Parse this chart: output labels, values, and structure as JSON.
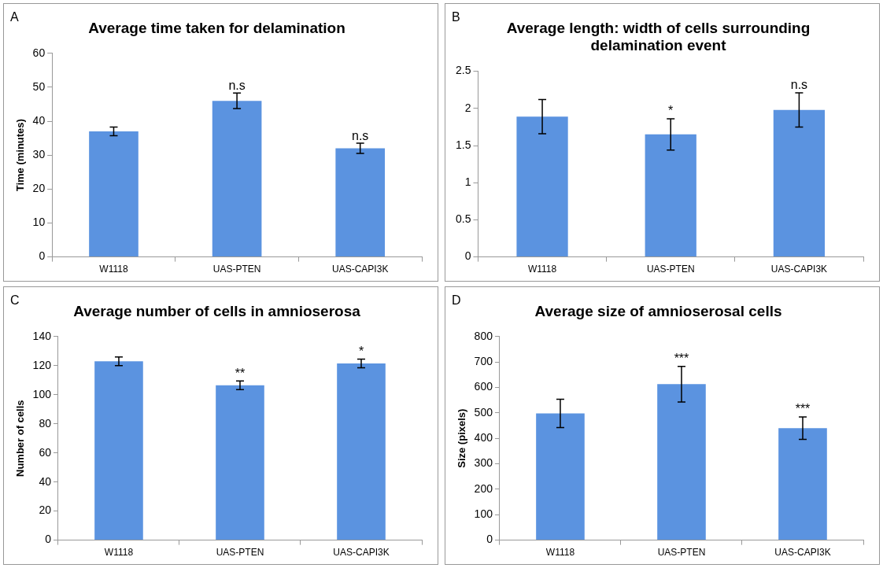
{
  "chart_data": [
    {
      "type": "bar",
      "title": "Average time taken for delamination",
      "ylabel": "Time (minutes)",
      "categories": [
        "W1118",
        "UAS-PTEN",
        "UAS-CAPI3K"
      ],
      "values": [
        37,
        46,
        32
      ],
      "errors": [
        1.3,
        2.3,
        1.5
      ],
      "color": "#5b93e0",
      "ylim": [
        0,
        60
      ],
      "yticks": [
        0,
        10,
        20,
        30,
        40,
        50,
        60
      ],
      "grid": false,
      "legend": false,
      "annotations": [
        "A",
        {
          "text": "n.s",
          "x": "UAS-PTEN",
          "y": 48.3
        },
        {
          "text": "n.s",
          "x": "UAS-CAPI3K",
          "y": 33.5
        }
      ]
    },
    {
      "type": "bar",
      "title": "Average length: width of cells surrounding delamination event",
      "categories": [
        "W1118",
        "UAS-PTEN",
        "UAS-CAPI3K"
      ],
      "values": [
        1.89,
        1.65,
        1.98
      ],
      "errors": [
        0.23,
        0.21,
        0.23
      ],
      "color": "#5b93e0",
      "ylim": [
        0,
        2.5
      ],
      "yticks": [
        0,
        0.5,
        1,
        1.5,
        2,
        2.5
      ],
      "grid": false,
      "legend": false,
      "annotations": [
        "B",
        {
          "text": "*",
          "x": "UAS-PTEN",
          "y": 1.86
        },
        {
          "text": "n.s",
          "x": "UAS-CAPI3K",
          "y": 2.21
        }
      ]
    },
    {
      "type": "bar",
      "title": "Average number of cells in amnioserosa",
      "ylabel": "Number of cells",
      "categories": [
        "W1118",
        "UAS-PTEN",
        "UAS-CAPI3K"
      ],
      "values": [
        123,
        106.5,
        121.5
      ],
      "errors": [
        3,
        3,
        3
      ],
      "color": "#5b93e0",
      "ylim": [
        0,
        140
      ],
      "yticks": [
        0,
        20,
        40,
        60,
        80,
        100,
        120,
        140
      ],
      "grid": false,
      "legend": false,
      "annotations": [
        "C",
        {
          "text": "**",
          "x": "UAS-PTEN",
          "y": 109.5
        },
        {
          "text": "*",
          "x": "UAS-CAPI3K",
          "y": 124.5
        }
      ]
    },
    {
      "type": "bar",
      "title": "Average size of amnioserosal cells",
      "ylabel": "Size (pixels)",
      "categories": [
        "W1118",
        "UAS-PTEN",
        "UAS-CAPI3K"
      ],
      "values": [
        498,
        613,
        440
      ],
      "errors": [
        56,
        70,
        44
      ],
      "color": "#5b93e0",
      "ylim": [
        0,
        800
      ],
      "yticks": [
        0,
        100,
        200,
        300,
        400,
        500,
        600,
        700,
        800
      ],
      "grid": false,
      "legend": false,
      "annotations": [
        "D",
        {
          "text": "***",
          "x": "UAS-PTEN",
          "y": 683
        },
        {
          "text": "***",
          "x": "UAS-CAPI3K",
          "y": 484
        }
      ]
    }
  ]
}
